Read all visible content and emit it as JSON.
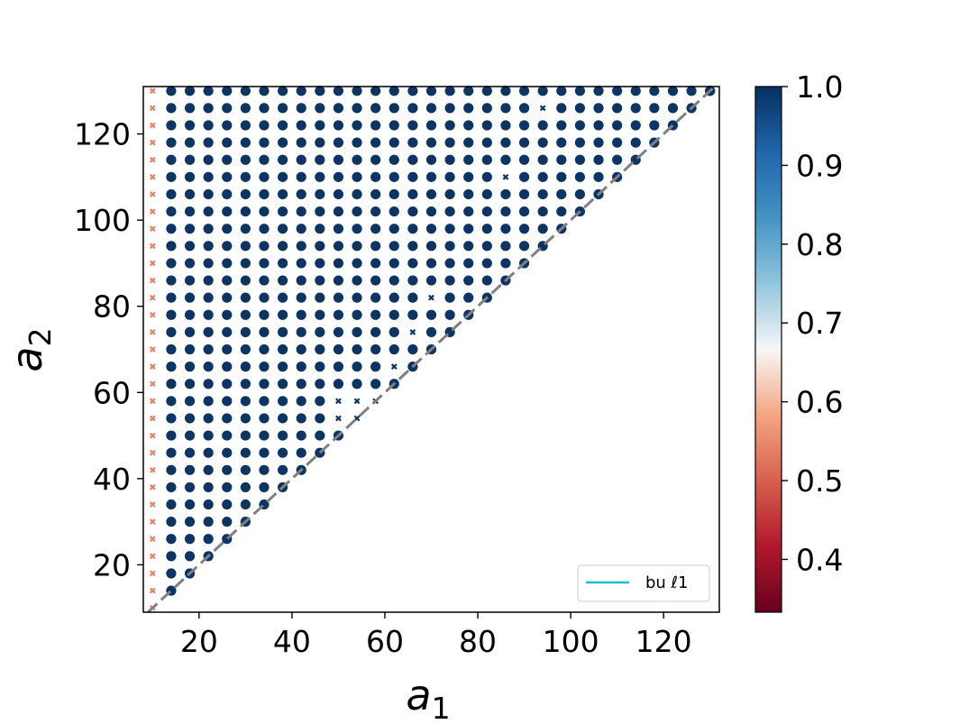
{
  "chart_data": {
    "type": "scatter",
    "title": "",
    "xlabel": {
      "base": "a",
      "sub": "1"
    },
    "ylabel": {
      "base": "a",
      "sub": "2"
    },
    "xlim": [
      8,
      132
    ],
    "ylim": [
      9,
      131
    ],
    "xticks": [
      20,
      40,
      60,
      80,
      100,
      120
    ],
    "yticks": [
      20,
      40,
      60,
      80,
      100,
      120
    ],
    "grid": false,
    "colormap": "RdBu",
    "color_range": [
      0.333,
      1.0
    ],
    "colorbar_ticks": [
      "0.4",
      "0.5",
      "0.6",
      "0.7",
      "0.8",
      "0.9",
      "1.0"
    ],
    "grid_spacing": 4,
    "grid_start": 10,
    "grid_end": 130,
    "default_value": 1.0,
    "marker_rule": "dots for a1 >= 14 where a2 >= a1; small x markers along a1 = 10",
    "edge_column": {
      "a1": 10,
      "value": 0.55,
      "marker": "x",
      "from_a2": 10,
      "to_a2": 130
    },
    "diagonal_markers": [
      10,
      130
    ],
    "x_marker_points": [
      {
        "x": 94,
        "y": 126
      },
      {
        "x": 86,
        "y": 110
      },
      {
        "x": 70,
        "y": 82
      },
      {
        "x": 66,
        "y": 74
      },
      {
        "x": 62,
        "y": 66
      },
      {
        "x": 50,
        "y": 58
      },
      {
        "x": 54,
        "y": 58
      },
      {
        "x": 58,
        "y": 58
      },
      {
        "x": 50,
        "y": 54
      },
      {
        "x": 54,
        "y": 54
      }
    ],
    "reference_line": {
      "type": "diagonal",
      "from": [
        9,
        9
      ],
      "to": [
        131,
        131
      ],
      "color": "#808080",
      "style": "dashed"
    },
    "legend": {
      "placement": "lower-right",
      "entries": [
        {
          "label": "bu ℓ1",
          "color": "#17becf"
        }
      ]
    },
    "colors": {
      "high": "#0d3563",
      "low_x": "#e8806a",
      "dashed_line": "#808080"
    }
  }
}
